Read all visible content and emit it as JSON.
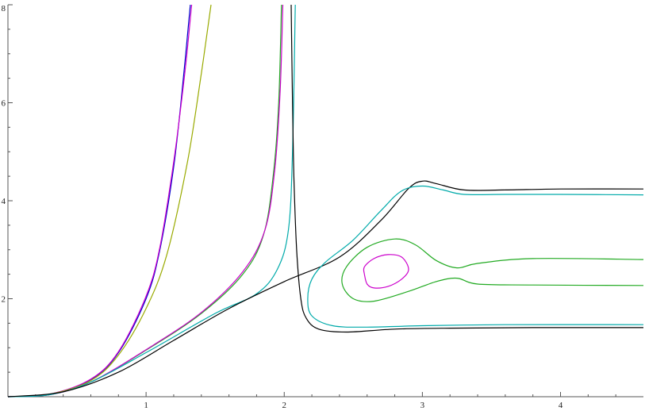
{
  "chart_data": {
    "type": "line",
    "title": "",
    "xlabel": "",
    "ylabel": "",
    "xlim": [
      0,
      4.6
    ],
    "ylim": [
      0,
      8
    ],
    "grid": false,
    "x_ticks": [
      {
        "value": 1,
        "label": "1"
      },
      {
        "value": 2,
        "label": "2"
      },
      {
        "value": 3,
        "label": "3"
      },
      {
        "value": 4,
        "label": "4"
      }
    ],
    "y_ticks": [
      {
        "value": 2,
        "label": "2"
      },
      {
        "value": 4,
        "label": "4"
      },
      {
        "value": 6,
        "label": "6"
      },
      {
        "value": 8,
        "label": "8"
      }
    ],
    "series": [
      {
        "color": "#0000cc",
        "points": [
          [
            0,
            0
          ],
          [
            0.3,
            0.05
          ],
          [
            0.6,
            0.35
          ],
          [
            0.8,
            0.9
          ],
          [
            1.0,
            2.0
          ],
          [
            1.1,
            3.0
          ],
          [
            1.2,
            4.7
          ],
          [
            1.27,
            6.5
          ],
          [
            1.32,
            8.0
          ]
        ]
      },
      {
        "color": "#cc00cc",
        "points": [
          [
            0,
            0
          ],
          [
            0.3,
            0.05
          ],
          [
            0.6,
            0.36
          ],
          [
            0.8,
            0.92
          ],
          [
            1.0,
            2.05
          ],
          [
            1.1,
            3.05
          ],
          [
            1.2,
            4.8
          ],
          [
            1.28,
            6.6
          ],
          [
            1.33,
            8.0
          ]
        ]
      },
      {
        "color": "#99aa00",
        "points": [
          [
            0,
            0
          ],
          [
            0.3,
            0.05
          ],
          [
            0.6,
            0.33
          ],
          [
            0.8,
            0.85
          ],
          [
            1.0,
            1.8
          ],
          [
            1.15,
            2.9
          ],
          [
            1.3,
            4.8
          ],
          [
            1.4,
            6.6
          ],
          [
            1.47,
            8.0
          ]
        ]
      },
      {
        "color": "#22aa22",
        "points": [
          [
            0,
            0
          ],
          [
            0.3,
            0.04
          ],
          [
            0.6,
            0.3
          ],
          [
            1.0,
            0.95
          ],
          [
            1.4,
            1.7
          ],
          [
            1.7,
            2.5
          ],
          [
            1.85,
            3.3
          ],
          [
            1.92,
            4.5
          ],
          [
            1.96,
            6.0
          ],
          [
            1.98,
            8.0
          ]
        ]
      },
      {
        "color": "#cc00cc",
        "points": [
          [
            0,
            0
          ],
          [
            0.3,
            0.04
          ],
          [
            0.6,
            0.3
          ],
          [
            1.0,
            0.96
          ],
          [
            1.4,
            1.72
          ],
          [
            1.7,
            2.55
          ],
          [
            1.86,
            3.4
          ],
          [
            1.93,
            4.6
          ],
          [
            1.97,
            6.2
          ],
          [
            1.99,
            8.0
          ]
        ]
      },
      {
        "color": "#00aaaa",
        "points": [
          [
            0,
            0
          ],
          [
            0.3,
            0.04
          ],
          [
            0.6,
            0.3
          ],
          [
            1.0,
            0.9
          ],
          [
            1.5,
            1.7
          ],
          [
            1.8,
            2.1
          ],
          [
            1.95,
            2.6
          ],
          [
            2.03,
            3.4
          ],
          [
            2.06,
            5.0
          ],
          [
            2.08,
            8.0
          ]
        ]
      },
      {
        "color": "#000000",
        "points": [
          [
            2.05,
            8.0
          ],
          [
            2.06,
            6.0
          ],
          [
            2.07,
            4.5
          ],
          [
            2.09,
            3.0
          ],
          [
            2.12,
            2.0
          ],
          [
            2.16,
            1.6
          ],
          [
            2.25,
            1.38
          ],
          [
            2.45,
            1.32
          ],
          [
            2.8,
            1.38
          ],
          [
            3.2,
            1.4
          ],
          [
            3.8,
            1.41
          ],
          [
            4.6,
            1.41
          ]
        ]
      },
      {
        "color": "#000000",
        "points": [
          [
            0,
            0
          ],
          [
            0.4,
            0.1
          ],
          [
            0.8,
            0.5
          ],
          [
            1.2,
            1.15
          ],
          [
            1.6,
            1.8
          ],
          [
            2.0,
            2.35
          ],
          [
            2.4,
            2.85
          ],
          [
            2.7,
            3.6
          ],
          [
            2.9,
            4.25
          ],
          [
            3.0,
            4.4
          ],
          [
            3.1,
            4.35
          ],
          [
            3.3,
            4.22
          ],
          [
            3.6,
            4.22
          ],
          [
            4.0,
            4.24
          ],
          [
            4.6,
            4.24
          ]
        ]
      },
      {
        "color": "#00aaaa",
        "points": [
          [
            4.6,
            4.12
          ],
          [
            4.0,
            4.13
          ],
          [
            3.6,
            4.13
          ],
          [
            3.3,
            4.13
          ],
          [
            3.15,
            4.22
          ],
          [
            3.0,
            4.3
          ],
          [
            2.85,
            4.2
          ],
          [
            2.7,
            3.8
          ],
          [
            2.5,
            3.2
          ],
          [
            2.3,
            2.75
          ],
          [
            2.2,
            2.4
          ],
          [
            2.17,
            2.0
          ],
          [
            2.2,
            1.65
          ],
          [
            2.35,
            1.45
          ],
          [
            2.6,
            1.42
          ],
          [
            3.0,
            1.45
          ],
          [
            3.6,
            1.47
          ],
          [
            4.6,
            1.47
          ]
        ]
      },
      {
        "color": "#22aa22",
        "points": [
          [
            4.6,
            2.8
          ],
          [
            3.8,
            2.82
          ],
          [
            3.4,
            2.72
          ],
          [
            3.25,
            2.63
          ],
          [
            3.1,
            2.78
          ],
          [
            2.95,
            3.1
          ],
          [
            2.8,
            3.22
          ],
          [
            2.6,
            3.05
          ],
          [
            2.45,
            2.65
          ],
          [
            2.42,
            2.3
          ],
          [
            2.5,
            2.0
          ],
          [
            2.65,
            1.95
          ],
          [
            2.9,
            2.15
          ],
          [
            3.1,
            2.35
          ],
          [
            3.25,
            2.42
          ],
          [
            3.4,
            2.3
          ],
          [
            3.8,
            2.28
          ],
          [
            4.6,
            2.27
          ]
        ]
      },
      {
        "color": "#cc00cc",
        "points": [
          [
            2.58,
            2.5
          ],
          [
            2.6,
            2.3
          ],
          [
            2.65,
            2.22
          ],
          [
            2.75,
            2.25
          ],
          [
            2.85,
            2.4
          ],
          [
            2.9,
            2.6
          ],
          [
            2.85,
            2.85
          ],
          [
            2.75,
            2.9
          ],
          [
            2.65,
            2.82
          ],
          [
            2.58,
            2.65
          ],
          [
            2.58,
            2.5
          ]
        ]
      }
    ]
  }
}
